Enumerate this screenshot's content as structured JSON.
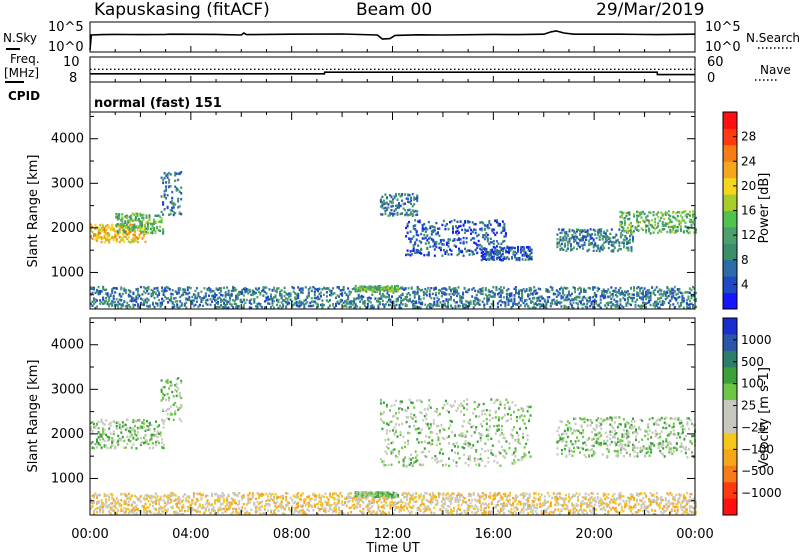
{
  "header": {
    "station": "Kapuskasing (fitACF)",
    "beam": "Beam 00",
    "date": "29/Mar/2019"
  },
  "chart_data": [
    {
      "type": "line",
      "panel": "noise",
      "left_label": "N.Sky",
      "right_label": "N.Search",
      "left_ticks": [
        "10^5",
        "10^0"
      ],
      "right_ticks": [
        "10^5",
        "10^0"
      ],
      "x_range_hours": [
        0,
        24
      ],
      "series": [
        {
          "values_log10": [
            [
              0,
              0.2
            ],
            [
              0.05,
              4.0
            ],
            [
              0.5,
              4.1
            ],
            [
              1,
              4.15
            ],
            [
              2,
              4.1
            ],
            [
              3,
              4.15
            ],
            [
              3.2,
              4.2
            ],
            [
              5,
              4.15
            ],
            [
              6,
              4.0
            ],
            [
              6.1,
              4.5
            ],
            [
              6.2,
              4.1
            ],
            [
              8,
              4.2
            ],
            [
              10,
              4.25
            ],
            [
              11.4,
              4.0
            ],
            [
              11.6,
              3.0
            ],
            [
              11.9,
              3.1
            ],
            [
              12.1,
              3.9
            ],
            [
              13,
              4.05
            ],
            [
              14,
              4.0
            ],
            [
              16,
              4.15
            ],
            [
              17,
              4.1
            ],
            [
              18,
              4.2
            ],
            [
              18.3,
              4.8
            ],
            [
              18.5,
              5.0
            ],
            [
              18.8,
              4.5
            ],
            [
              19.2,
              4.2
            ],
            [
              21,
              4.2
            ],
            [
              22.5,
              4.1
            ],
            [
              24,
              4.2
            ]
          ]
        }
      ]
    },
    {
      "type": "line",
      "panel": "frequency",
      "left_label": "Freq.",
      "left_unit": "[MHz]",
      "right_label": "Nave",
      "left_ticks": [
        "10",
        "8"
      ],
      "right_ticks": [
        "60",
        "0"
      ],
      "x_range_hours": [
        0,
        24
      ],
      "series": [
        {
          "values_mhz": [
            [
              0,
              8.9
            ],
            [
              9.3,
              8.9
            ],
            [
              9.31,
              9.1
            ],
            [
              22.5,
              9.1
            ],
            [
              22.51,
              8.8
            ],
            [
              24,
              8.8
            ]
          ]
        },
        {
          "values_nave": [
            [
              0,
              44
            ],
            [
              24,
              44
            ]
          ]
        }
      ]
    },
    {
      "type": "heatmap",
      "panel": "cpid",
      "left_label": "CPID",
      "program": "normal (fast) 151"
    },
    {
      "type": "heatmap",
      "panel": "power",
      "ylabel": "Slant Range [km]",
      "xlabel": "Time UT",
      "ylim": [
        180,
        4600
      ],
      "yticks": [
        1000,
        2000,
        3000,
        4000
      ],
      "xticks": [
        "00:00",
        "04:00",
        "08:00",
        "12:00",
        "16:00",
        "20:00",
        "00:00"
      ],
      "colorbar": {
        "label": "Power [dB]",
        "ticks": [
          "4",
          "8",
          "12",
          "16",
          "20",
          "24",
          "28"
        ],
        "colors": [
          "#1515ff",
          "#2049c6",
          "#2d6aa6",
          "#3a8f6a",
          "#4e9f6e",
          "#4fc24f",
          "#a8cc2a",
          "#f5d61c",
          "#f7a51a",
          "#f67c18",
          "#ff3a10",
          "#ff1010"
        ]
      },
      "regions": [
        {
          "start": 0.0,
          "end": 2.2,
          "r_low": 1700,
          "r_high": 2100,
          "color_index": 8
        },
        {
          "start": 1.0,
          "end": 2.9,
          "r_low": 1900,
          "r_high": 2350,
          "color_index": 5
        },
        {
          "start": 2.8,
          "end": 3.6,
          "r_low": 2300,
          "r_high": 3300,
          "color_index": 3
        },
        {
          "start": 11.5,
          "end": 13.0,
          "r_low": 2300,
          "r_high": 2800,
          "color_index": 3
        },
        {
          "start": 12.5,
          "end": 16.5,
          "r_low": 1400,
          "r_high": 2200,
          "color_index": 2
        },
        {
          "start": 15.5,
          "end": 17.5,
          "r_low": 1300,
          "r_high": 1600,
          "color_index": 2
        },
        {
          "start": 18.5,
          "end": 21.5,
          "r_low": 1500,
          "r_high": 2000,
          "color_index": 3
        },
        {
          "start": 21.0,
          "end": 24.0,
          "r_low": 1900,
          "r_high": 2400,
          "color_index": 5
        },
        {
          "start": 0.0,
          "end": 24.0,
          "r_low": 200,
          "r_high": 700,
          "color_index": 3
        },
        {
          "start": 10.5,
          "end": 12.2,
          "r_low": 600,
          "r_high": 720,
          "color_index": 5
        }
      ]
    },
    {
      "type": "heatmap",
      "panel": "velocity",
      "ylabel": "Slant Range [km]",
      "xlabel": "Time UT",
      "ylim": [
        180,
        4600
      ],
      "yticks": [
        1000,
        2000,
        3000,
        4000
      ],
      "xticks": [
        "00:00",
        "04:00",
        "08:00",
        "12:00",
        "16:00",
        "20:00",
        "00:00"
      ],
      "colorbar": {
        "label": "Velocity [m s-1]",
        "ticks": [
          "1000",
          "500",
          "100",
          "25",
          "−25",
          "−100",
          "−500",
          "−1000"
        ],
        "colors": [
          "#1a2ecf",
          "#2a55a8",
          "#2e7d6a",
          "#3aa03a",
          "#6cc844",
          "#c8c8c0",
          "#c8c8c0",
          "#f7c61a",
          "#f7a51a",
          "#f67c18",
          "#ff3a10",
          "#ff1010"
        ]
      },
      "regions": [
        {
          "start": 0.0,
          "end": 2.9,
          "r_low": 1700,
          "r_high": 2350,
          "color_index": 5
        },
        {
          "start": 2.8,
          "end": 3.6,
          "r_low": 2300,
          "r_high": 3300,
          "color_index": 5
        },
        {
          "start": 11.5,
          "end": 17.5,
          "r_low": 1300,
          "r_high": 2800,
          "color_index": 5
        },
        {
          "start": 18.5,
          "end": 24.0,
          "r_low": 1500,
          "r_high": 2400,
          "color_index": 5
        },
        {
          "start": 0.0,
          "end": 24.0,
          "r_low": 200,
          "r_high": 700,
          "color_index": 7
        },
        {
          "start": 10.5,
          "end": 12.2,
          "r_low": 600,
          "r_high": 720,
          "color_index": 5
        }
      ]
    }
  ]
}
